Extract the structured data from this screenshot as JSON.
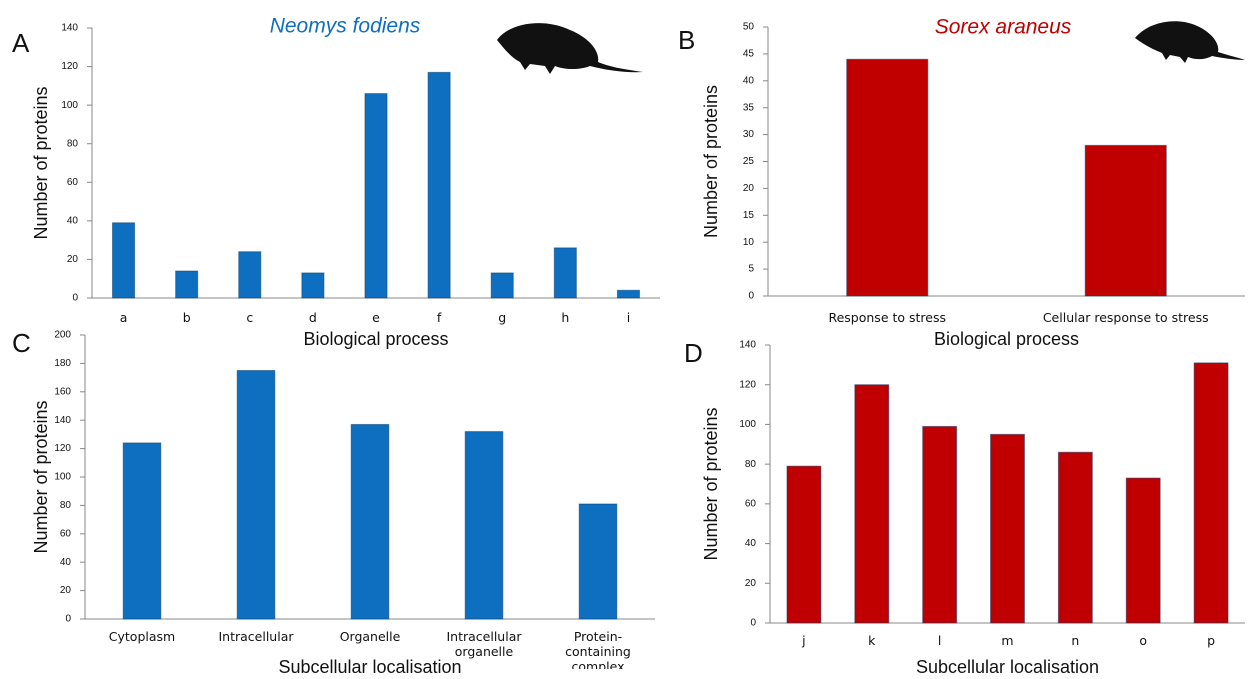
{
  "chart_data": [
    {
      "type": "bar",
      "panel": "A",
      "title": "Neomys fodiens",
      "xlabel": "Biological process",
      "ylabel": "Number of proteins",
      "categories": [
        "a",
        "b",
        "c",
        "d",
        "e",
        "f",
        "g",
        "h",
        "i"
      ],
      "values": [
        39,
        14,
        24,
        13,
        106,
        117,
        13,
        26,
        4
      ],
      "color": "#0e6ebf",
      "ylim": [
        0,
        140
      ],
      "yticks": [
        0,
        20,
        40,
        60,
        80,
        100,
        120,
        140
      ]
    },
    {
      "type": "bar",
      "panel": "B",
      "title": "Sorex araneus",
      "xlabel": "Biological process",
      "ylabel": "Number of proteins",
      "categories": [
        "Response to stress",
        "Cellular response to stress"
      ],
      "values": [
        44,
        28
      ],
      "color": "#c00000",
      "ylim": [
        0,
        50
      ],
      "yticks": [
        0,
        5,
        10,
        15,
        20,
        25,
        30,
        35,
        40,
        45,
        50
      ]
    },
    {
      "type": "bar",
      "panel": "C",
      "xlabel": "Subcellular localisation",
      "ylabel": "Number of proteins",
      "categories": [
        "Cytoplasm",
        "Intracellular",
        "Organelle",
        "Intracellular organelle",
        "Protein-containing complex"
      ],
      "values": [
        124,
        175,
        137,
        132,
        81
      ],
      "color": "#0e6ebf",
      "ylim": [
        0,
        200
      ],
      "yticks": [
        0,
        20,
        40,
        60,
        80,
        100,
        120,
        140,
        160,
        180,
        200
      ]
    },
    {
      "type": "bar",
      "panel": "D",
      "xlabel": "Subcellular localisation",
      "ylabel": "Number of proteins",
      "categories": [
        "j",
        "k",
        "l",
        "m",
        "n",
        "o",
        "p"
      ],
      "values": [
        79,
        120,
        99,
        95,
        86,
        73,
        131
      ],
      "color": "#c00000",
      "ylim": [
        0,
        140
      ],
      "yticks": [
        0,
        20,
        40,
        60,
        80,
        100,
        120,
        140
      ]
    }
  ]
}
